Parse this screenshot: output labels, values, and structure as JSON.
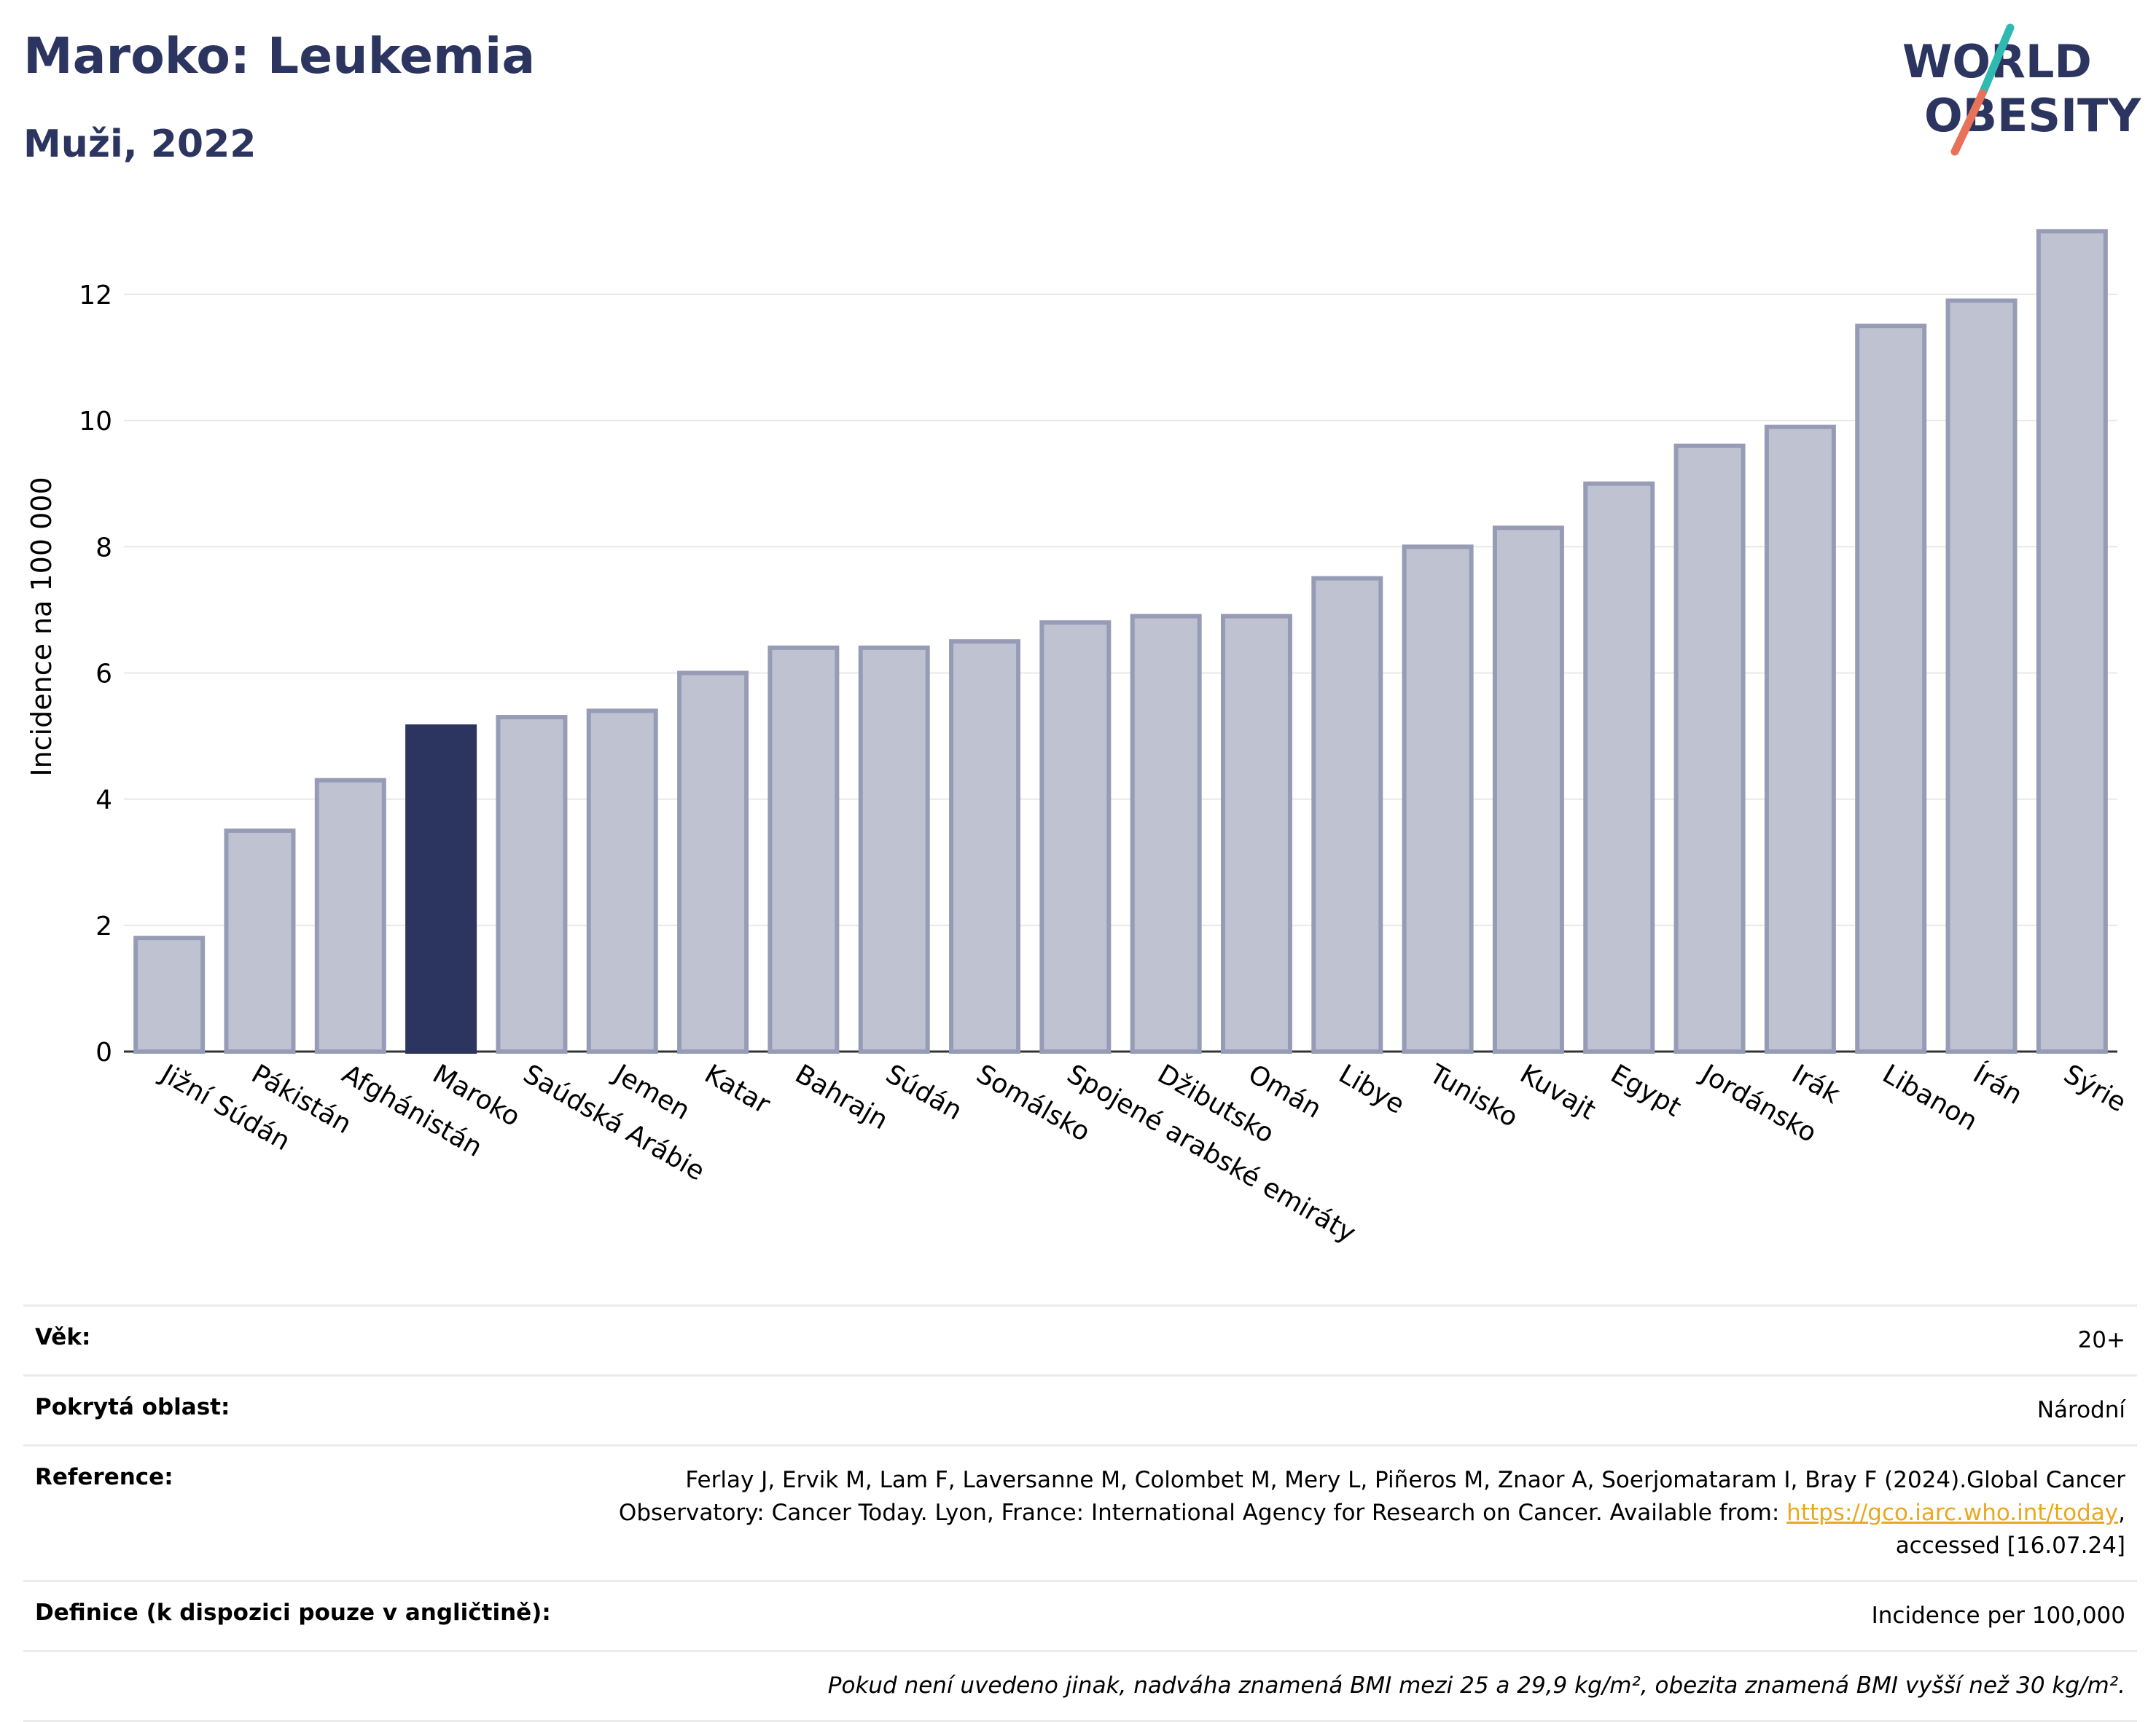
{
  "header": {
    "title": "Maroko: Leukemia",
    "subtitle": "Muži, 2022"
  },
  "logo": {
    "line1": "WORLD",
    "line2": "OBESITY"
  },
  "colors": {
    "highlight": "#2c3560",
    "bar_fill": "#bfc2d0",
    "bar_stroke": "#979cb6",
    "grid": "#e8e8e8",
    "logo_slash_teal": "#2fb9b0",
    "logo_slash_coral": "#e8715a"
  },
  "chart_data": {
    "type": "bar",
    "ylabel": "Incidence na 100 000",
    "ylim": [
      0,
      13.2
    ],
    "yticks": [
      0,
      2,
      4,
      6,
      8,
      10,
      12
    ],
    "grid": true,
    "highlight": "Maroko",
    "categories": [
      "Jižní Súdán",
      "Pákistán",
      "Afghánistán",
      "Maroko",
      "Saúdská Arábie",
      "Jemen",
      "Katar",
      "Bahrajn",
      "Súdán",
      "Somálsko",
      "Spojené arabské emiráty",
      "Džibutsko",
      "Omán",
      "Libye",
      "Tunisko",
      "Kuvajt",
      "Egypt",
      "Jordánsko",
      "Irák",
      "Libanon",
      "Írán",
      "Sýrie"
    ],
    "values": [
      1.8,
      3.5,
      4.3,
      5.15,
      5.3,
      5.4,
      6.0,
      6.4,
      6.4,
      6.5,
      6.8,
      6.9,
      6.9,
      7.5,
      8.0,
      8.3,
      9.0,
      9.6,
      9.9,
      11.5,
      11.9,
      13.0
    ]
  },
  "meta": {
    "age_label": "Věk:",
    "age_value": "20+",
    "area_label": "Pokrytá oblast:",
    "area_value": "Národní",
    "reference_label": "Reference:",
    "reference_text": "Ferlay J, Ervik M, Lam F, Laversanne M, Colombet M, Mery L, Piñeros M, Znaor A, Soerjomataram I, Bray F (2024).Global Cancer Observatory: Cancer Today. Lyon, France: International Agency for Research on Cancer. Available from: ",
    "reference_link": "https://gco.iarc.who.int/today",
    "reference_tail": ", accessed [16.07.24]",
    "definition_label": "Definice (k dispozici pouze v angličtině):",
    "definition_value": "Incidence per 100,000",
    "note": "Pokud není uvedeno jinak, nadváha znamená BMI mezi 25 a 29,9 kg/m², obezita znamená BMI vyšší než 30 kg/m²."
  }
}
